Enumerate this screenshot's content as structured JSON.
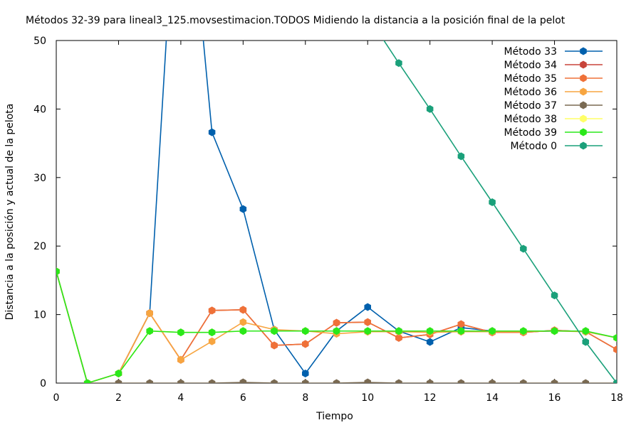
{
  "chart_data": {
    "type": "line",
    "title": "Métodos 32-39 para lineal3_125.movsestimacion.TODOS Midiendo la distancia a la posición final de la pelot",
    "xlabel": "Tiempo",
    "ylabel": "Distancia a la posición y actual de la pelota",
    "xlim": [
      0,
      18
    ],
    "ylim": [
      0,
      50
    ],
    "xticks": [
      0,
      2,
      4,
      6,
      8,
      10,
      12,
      14,
      16,
      18
    ],
    "yticks": [
      0,
      10,
      20,
      30,
      40,
      50
    ],
    "legend_position": "top-right",
    "grid": false,
    "series": [
      {
        "name": "Método 33",
        "color": "#0060ad",
        "x": [
          0,
          1,
          2,
          3,
          4,
          5,
          6,
          7,
          8,
          9,
          10,
          11,
          12,
          13,
          14,
          15,
          16,
          17,
          18
        ],
        "values": [
          16.3,
          0,
          1.4,
          10.2,
          85,
          36.6,
          25.4,
          7.8,
          1.4,
          7.6,
          11.1,
          7.6,
          6.0,
          8.1,
          7.6,
          7.5,
          7.6,
          7.6,
          6.6
        ]
      },
      {
        "name": "Método 34",
        "color": "#c8443a",
        "x": [
          0,
          1,
          2,
          3,
          4,
          5,
          6,
          7,
          8,
          9,
          10,
          11,
          12,
          13,
          14,
          15,
          16,
          17,
          18
        ],
        "values": [
          16.3,
          0,
          1.4,
          10.2,
          3.4,
          10.6,
          10.7,
          5.5,
          5.7,
          8.8,
          8.9,
          6.6,
          7.1,
          8.6,
          7.4,
          7.4,
          7.7,
          7.5,
          4.9
        ]
      },
      {
        "name": "Método 35",
        "color": "#ef7138",
        "x": [
          0,
          1,
          2,
          3,
          4,
          5,
          6,
          7,
          8,
          9,
          10,
          11,
          12,
          13,
          14,
          15,
          16,
          17,
          18
        ],
        "values": [
          16.3,
          0,
          1.4,
          10.2,
          3.4,
          10.6,
          10.7,
          5.5,
          5.7,
          8.8,
          8.9,
          6.6,
          7.1,
          8.6,
          7.4,
          7.4,
          7.7,
          7.5,
          4.9
        ]
      },
      {
        "name": "Método 36",
        "color": "#f7a540",
        "x": [
          0,
          1,
          2,
          3,
          4,
          5,
          6,
          7,
          8,
          9,
          10,
          11,
          12,
          13,
          14,
          15,
          16,
          17,
          18
        ],
        "values": [
          16.3,
          0,
          1.4,
          10.2,
          3.4,
          6.1,
          8.9,
          7.8,
          7.6,
          7.2,
          7.5,
          7.5,
          7.4,
          7.5,
          7.5,
          7.5,
          7.6,
          7.5,
          6.6
        ]
      },
      {
        "name": "Método 37",
        "color": "#7a6a52",
        "x": [
          0,
          1,
          2,
          3,
          4,
          5,
          6,
          7,
          8,
          9,
          10,
          11,
          12,
          13,
          14,
          15,
          16,
          17,
          18
        ],
        "values": [
          16.3,
          0,
          0,
          0,
          0,
          0,
          0.1,
          0,
          0,
          0,
          0.1,
          0,
          0,
          0,
          0,
          0,
          0,
          0,
          0
        ]
      },
      {
        "name": "Método 38",
        "color": "#ffff66",
        "x": [
          0,
          1,
          2,
          3,
          4,
          5,
          6,
          7,
          8,
          9,
          10,
          11,
          12,
          13,
          14,
          15,
          16,
          17,
          18
        ],
        "values": [
          16.3,
          0,
          1.4,
          7.6,
          7.4,
          7.4,
          7.6,
          7.6,
          7.6,
          7.6,
          7.6,
          7.6,
          7.6,
          7.6,
          7.6,
          7.6,
          7.6,
          7.6,
          6.6
        ]
      },
      {
        "name": "Método 39",
        "color": "#2ae81a",
        "x": [
          0,
          1,
          2,
          3,
          4,
          5,
          6,
          7,
          8,
          9,
          10,
          11,
          12,
          13,
          14,
          15,
          16,
          17,
          18
        ],
        "values": [
          16.3,
          0,
          1.4,
          7.6,
          7.4,
          7.4,
          7.6,
          7.6,
          7.6,
          7.6,
          7.6,
          7.6,
          7.6,
          7.6,
          7.6,
          7.6,
          7.6,
          7.6,
          6.6
        ]
      },
      {
        "name": "Método 0",
        "color": "#1aa07a",
        "x": [
          9,
          10,
          11,
          12,
          13,
          14,
          15,
          16,
          17,
          18
        ],
        "values": [
          60.3,
          53.6,
          46.7,
          40.0,
          33.1,
          26.4,
          19.6,
          12.8,
          6.0,
          0
        ]
      }
    ]
  }
}
